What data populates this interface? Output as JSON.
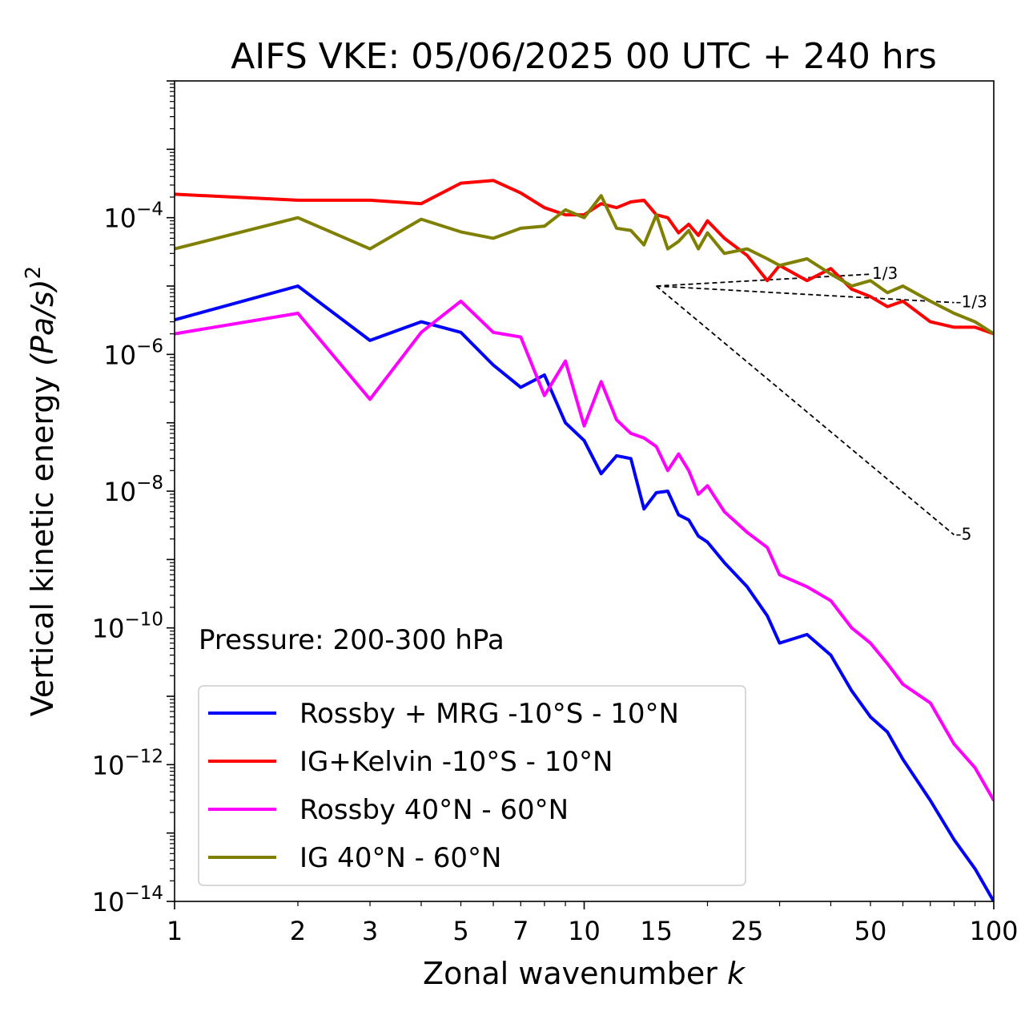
{
  "chart_data": {
    "type": "line",
    "title": "AIFS VKE: 05/06/2025 00 UTC + 240 hrs",
    "xlabel": "Zonal wavenumber",
    "xlabel_italic": "k",
    "ylabel": "Vertical kinetic energy",
    "ylabel_unit": "(Pa/s)",
    "ylabel_unit_exp": "2",
    "x_scale": "log",
    "y_scale": "log",
    "xlim": [
      1,
      100
    ],
    "ylim": [
      1e-14,
      0.01
    ],
    "x_ticks": [
      {
        "value": 1,
        "label": "1"
      },
      {
        "value": 2,
        "label": "2"
      },
      {
        "value": 3,
        "label": "3"
      },
      {
        "value": 5,
        "label": "5"
      },
      {
        "value": 7,
        "label": "7"
      },
      {
        "value": 10,
        "label": "10"
      },
      {
        "value": 15,
        "label": "15"
      },
      {
        "value": 25,
        "label": "25"
      },
      {
        "value": 50,
        "label": "50"
      },
      {
        "value": 100,
        "label": "100"
      }
    ],
    "y_ticks": [
      {
        "value": 0.0001,
        "base": "10",
        "exp": "−4"
      },
      {
        "value": 1e-06,
        "base": "10",
        "exp": "−6"
      },
      {
        "value": 1e-08,
        "base": "10",
        "exp": "−8"
      },
      {
        "value": 1e-10,
        "base": "10",
        "exp": "−10"
      },
      {
        "value": 1e-12,
        "base": "10",
        "exp": "−12"
      },
      {
        "value": 1e-14,
        "base": "10",
        "exp": "−14"
      }
    ],
    "annotation": "Pressure: 200-300 hPa",
    "legend_position": "lower-left",
    "series": [
      {
        "name": "Rossby + MRG -10°S - 10°N",
        "color": "#0000ff",
        "x": [
          1,
          2,
          3,
          4,
          5,
          6,
          7,
          8,
          9,
          10,
          11,
          12,
          13,
          14,
          15,
          16,
          17,
          18,
          19,
          20,
          22,
          25,
          28,
          30,
          35,
          40,
          45,
          50,
          55,
          60,
          70,
          80,
          90,
          100
        ],
        "y": [
          3.2e-06,
          1e-05,
          1.6e-06,
          3e-06,
          2.1e-06,
          7e-07,
          3.3e-07,
          5e-07,
          1e-07,
          5.5e-08,
          1.8e-08,
          3.3e-08,
          3e-08,
          5.5e-09,
          9.5e-09,
          1e-08,
          4.5e-09,
          3.8e-09,
          2.2e-09,
          1.8e-09,
          9e-10,
          4e-10,
          1.5e-10,
          6e-11,
          8e-11,
          4e-11,
          1.2e-11,
          5e-12,
          3e-12,
          1.2e-12,
          3e-13,
          8e-14,
          3e-14,
          1e-14
        ]
      },
      {
        "name": "IG+Kelvin -10°S - 10°N",
        "color": "#ff0000",
        "x": [
          1,
          2,
          3,
          4,
          5,
          6,
          7,
          8,
          9,
          10,
          11,
          12,
          13,
          14,
          15,
          16,
          17,
          18,
          19,
          20,
          22,
          25,
          28,
          30,
          35,
          40,
          45,
          50,
          55,
          60,
          70,
          80,
          90,
          100
        ],
        "y": [
          0.00022,
          0.00018,
          0.00018,
          0.00016,
          0.00032,
          0.00035,
          0.00023,
          0.00014,
          0.00011,
          0.00011,
          0.00016,
          0.00014,
          0.00017,
          0.00018,
          0.00011,
          0.0001,
          6e-05,
          8e-05,
          5.5e-05,
          9e-05,
          5e-05,
          2.8e-05,
          1.2e-05,
          2e-05,
          1.2e-05,
          1.8e-05,
          9e-06,
          7e-06,
          5e-06,
          6e-06,
          3e-06,
          2.5e-06,
          2.5e-06,
          2e-06
        ]
      },
      {
        "name": "Rossby 40°N - 60°N",
        "color": "#ff00ff",
        "x": [
          1,
          2,
          3,
          4,
          5,
          6,
          7,
          8,
          9,
          10,
          11,
          12,
          13,
          14,
          15,
          16,
          17,
          18,
          19,
          20,
          22,
          25,
          28,
          30,
          35,
          40,
          45,
          50,
          55,
          60,
          70,
          80,
          90,
          100
        ],
        "y": [
          2e-06,
          4e-06,
          2.2e-07,
          2.1e-06,
          6e-06,
          2.1e-06,
          1.8e-06,
          2.5e-07,
          8e-07,
          9e-08,
          4e-07,
          1.1e-07,
          7e-08,
          6e-08,
          4.5e-08,
          2e-08,
          3.5e-08,
          2e-08,
          9e-09,
          1.2e-08,
          5e-09,
          2.5e-09,
          1.5e-09,
          6e-10,
          4e-10,
          2.5e-10,
          1e-10,
          6e-11,
          3e-11,
          1.5e-11,
          8e-12,
          2e-12,
          9e-13,
          3e-13
        ]
      },
      {
        "name": "IG 40°N - 60°N",
        "color": "#808000",
        "x": [
          1,
          2,
          3,
          4,
          5,
          6,
          7,
          8,
          9,
          10,
          11,
          12,
          13,
          14,
          15,
          16,
          17,
          18,
          19,
          20,
          22,
          25,
          28,
          30,
          35,
          40,
          45,
          50,
          55,
          60,
          70,
          80,
          90,
          100
        ],
        "y": [
          3.5e-05,
          0.0001,
          3.5e-05,
          9.5e-05,
          6.2e-05,
          5e-05,
          7e-05,
          7.5e-05,
          0.00013,
          0.0001,
          0.00021,
          7e-05,
          6.5e-05,
          4e-05,
          0.00011,
          3.5e-05,
          4.5e-05,
          6.5e-05,
          3.5e-05,
          6e-05,
          3e-05,
          3.5e-05,
          2.5e-05,
          2e-05,
          2.5e-05,
          1.5e-05,
          1e-05,
          1.2e-05,
          8e-06,
          1e-05,
          6e-06,
          4e-06,
          3e-06,
          2e-06
        ]
      }
    ],
    "reference_slopes": [
      {
        "label": "1/3",
        "x": [
          15,
          50
        ],
        "y": [
          1e-05,
          1.49e-05
        ]
      },
      {
        "label": "-1/3",
        "x": [
          15,
          80
        ],
        "y": [
          1e-05,
          5.73e-06
        ]
      },
      {
        "label": "-5",
        "x": [
          15,
          80
        ],
        "y": [
          1e-05,
          2.3e-09
        ]
      }
    ]
  }
}
